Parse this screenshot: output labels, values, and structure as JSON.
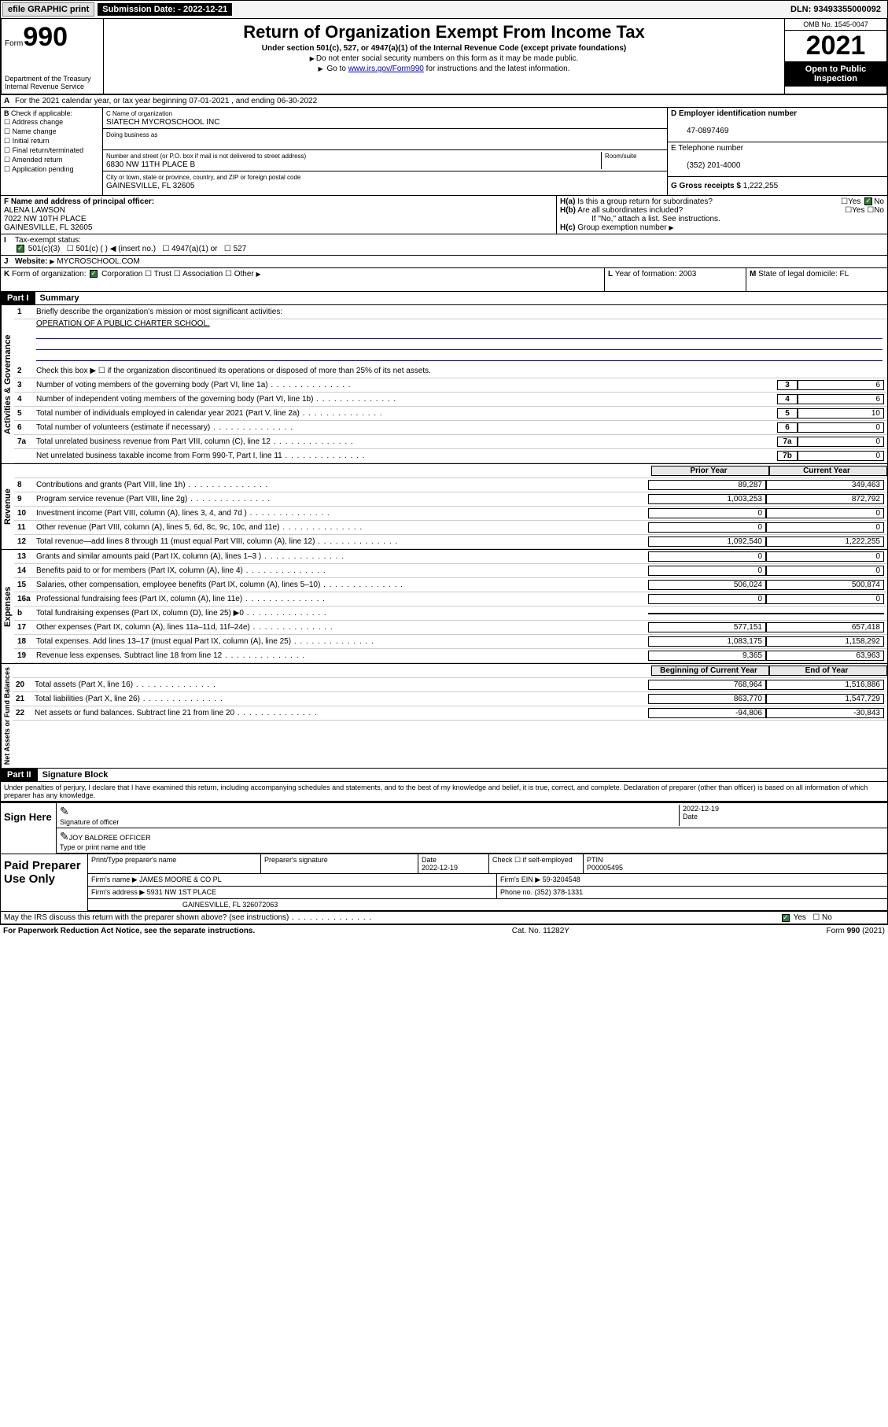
{
  "topbar": {
    "efile": "efile GRAPHIC print",
    "submission": "Submission Date: - 2022-12-21",
    "dln": "DLN: 93493355000092"
  },
  "header": {
    "form_prefix": "Form",
    "form_num": "990",
    "dept": "Department of the Treasury\nInternal Revenue Service",
    "title": "Return of Organization Exempt From Income Tax",
    "subtitle": "Under section 501(c), 527, or 4947(a)(1) of the Internal Revenue Code (except private foundations)",
    "note1": "Do not enter social security numbers on this form as it may be made public.",
    "note2_pre": "Go to ",
    "note2_link": "www.irs.gov/Form990",
    "note2_post": " for instructions and the latest information.",
    "omb": "OMB No. 1545-0047",
    "year": "2021",
    "open": "Open to Public Inspection"
  },
  "lineA": "For the 2021 calendar year, or tax year beginning 07-01-2021    , and ending 06-30-2022",
  "boxB": {
    "label": "Check if applicable:",
    "items": [
      "Address change",
      "Name change",
      "Initial return",
      "Final return/terminated",
      "Amended return",
      "Application pending"
    ]
  },
  "boxC": {
    "name_lbl": "C Name of organization",
    "name": "SIATECH MYCROSCHOOL INC",
    "dba_lbl": "Doing business as",
    "dba": "",
    "addr_lbl": "Number and street (or P.O. box if mail is not delivered to street address)",
    "addr": "6830 NW 11TH PLACE B",
    "room_lbl": "Room/suite",
    "city_lbl": "City or town, state or province, country, and ZIP or foreign postal code",
    "city": "GAINESVILLE, FL  32605"
  },
  "boxD": {
    "lbl": "D Employer identification number",
    "val": "47-0897469"
  },
  "boxE": {
    "lbl": "E Telephone number",
    "val": "(352) 201-4000"
  },
  "boxG": {
    "lbl": "G Gross receipts $",
    "val": "1,222,255"
  },
  "boxF": {
    "lbl": "F  Name and address of principal officer:",
    "name": "ALENA LAWSON",
    "addr": "7022 NW 10TH PLACE",
    "city": "GAINESVILLE, FL  32605"
  },
  "boxH": {
    "a": "Is this a group return for subordinates?",
    "b": "Are all subordinates included?",
    "b_note": "If \"No,\" attach a list. See instructions.",
    "c": "Group exemption number"
  },
  "boxI": {
    "lbl": "Tax-exempt status:",
    "opts": [
      "501(c)(3)",
      "501(c) (  ) ◀ (insert no.)",
      "4947(a)(1) or",
      "527"
    ]
  },
  "boxJ": {
    "lbl": "Website:",
    "val": "MYCROSCHOOL.COM"
  },
  "boxK": {
    "lbl": "Form of organization:",
    "opts": [
      "Corporation",
      "Trust",
      "Association",
      "Other"
    ]
  },
  "boxL": {
    "lbl": "Year of formation:",
    "val": "2003"
  },
  "boxM": {
    "lbl": "State of legal domicile:",
    "val": "FL"
  },
  "part1": {
    "hdr": "Part I",
    "title": "Summary",
    "l1": "Briefly describe the organization's mission or most significant activities:",
    "l1v": "OPERATION OF A PUBLIC CHARTER SCHOOL.",
    "l2": "Check this box ▶ ☐  if the organization discontinued its operations or disposed of more than 25% of its net assets.",
    "rows_gov": [
      {
        "n": "3",
        "t": "Number of voting members of the governing body (Part VI, line 1a)",
        "box": "3",
        "v": "6"
      },
      {
        "n": "4",
        "t": "Number of independent voting members of the governing body (Part VI, line 1b)",
        "box": "4",
        "v": "6"
      },
      {
        "n": "5",
        "t": "Total number of individuals employed in calendar year 2021 (Part V, line 2a)",
        "box": "5",
        "v": "10"
      },
      {
        "n": "6",
        "t": "Total number of volunteers (estimate if necessary)",
        "box": "6",
        "v": "0"
      },
      {
        "n": "7a",
        "t": "Total unrelated business revenue from Part VIII, column (C), line 12",
        "box": "7a",
        "v": "0"
      },
      {
        "n": "",
        "t": "Net unrelated business taxable income from Form 990-T, Part I, line 11",
        "box": "7b",
        "v": "0"
      }
    ],
    "col_prior": "Prior Year",
    "col_curr": "Current Year",
    "rows_rev": [
      {
        "n": "8",
        "t": "Contributions and grants (Part VIII, line 1h)",
        "p": "89,287",
        "c": "349,463"
      },
      {
        "n": "9",
        "t": "Program service revenue (Part VIII, line 2g)",
        "p": "1,003,253",
        "c": "872,792"
      },
      {
        "n": "10",
        "t": "Investment income (Part VIII, column (A), lines 3, 4, and 7d )",
        "p": "0",
        "c": "0"
      },
      {
        "n": "11",
        "t": "Other revenue (Part VIII, column (A), lines 5, 6d, 8c, 9c, 10c, and 11e)",
        "p": "0",
        "c": "0"
      },
      {
        "n": "12",
        "t": "Total revenue—add lines 8 through 11 (must equal Part VIII, column (A), line 12)",
        "p": "1,092,540",
        "c": "1,222,255"
      }
    ],
    "rows_exp": [
      {
        "n": "13",
        "t": "Grants and similar amounts paid (Part IX, column (A), lines 1–3 )",
        "p": "0",
        "c": "0"
      },
      {
        "n": "14",
        "t": "Benefits paid to or for members (Part IX, column (A), line 4)",
        "p": "0",
        "c": "0"
      },
      {
        "n": "15",
        "t": "Salaries, other compensation, employee benefits (Part IX, column (A), lines 5–10)",
        "p": "506,024",
        "c": "500,874"
      },
      {
        "n": "16a",
        "t": "Professional fundraising fees (Part IX, column (A), line 11e)",
        "p": "0",
        "c": "0"
      },
      {
        "n": "b",
        "t": "Total fundraising expenses (Part IX, column (D), line 25) ▶0",
        "p": "gray",
        "c": "gray"
      },
      {
        "n": "17",
        "t": "Other expenses (Part IX, column (A), lines 11a–11d, 11f–24e)",
        "p": "577,151",
        "c": "657,418"
      },
      {
        "n": "18",
        "t": "Total expenses. Add lines 13–17 (must equal Part IX, column (A), line 25)",
        "p": "1,083,175",
        "c": "1,158,292"
      },
      {
        "n": "19",
        "t": "Revenue less expenses. Subtract line 18 from line 12",
        "p": "9,365",
        "c": "63,963"
      }
    ],
    "col_beg": "Beginning of Current Year",
    "col_end": "End of Year",
    "rows_net": [
      {
        "n": "20",
        "t": "Total assets (Part X, line 16)",
        "p": "768,964",
        "c": "1,516,886"
      },
      {
        "n": "21",
        "t": "Total liabilities (Part X, line 26)",
        "p": "863,770",
        "c": "1,547,729"
      },
      {
        "n": "22",
        "t": "Net assets or fund balances. Subtract line 21 from line 20",
        "p": "-94,806",
        "c": "-30,843"
      }
    ],
    "vlabels": {
      "gov": "Activities & Governance",
      "rev": "Revenue",
      "exp": "Expenses",
      "net": "Net Assets or Fund Balances"
    }
  },
  "part2": {
    "hdr": "Part II",
    "title": "Signature Block",
    "decl": "Under penalties of perjury, I declare that I have examined this return, including accompanying schedules and statements, and to the best of my knowledge and belief, it is true, correct, and complete. Declaration of preparer (other than officer) is based on all information of which preparer has any knowledge.",
    "sign_here": "Sign Here",
    "sig_officer": "Signature of officer",
    "sig_date": "Date",
    "sig_date_v": "2022-12-19",
    "sig_name": "JOY BALDREE OFFICER",
    "sig_name_lbl": "Type or print name and title",
    "paid": "Paid Preparer Use Only",
    "p_name_lbl": "Print/Type preparer's name",
    "p_name": "",
    "p_sig_lbl": "Preparer's signature",
    "p_date_lbl": "Date",
    "p_date": "2022-12-19",
    "p_check": "Check ☐ if self-employed",
    "p_ptin_lbl": "PTIN",
    "p_ptin": "P00005495",
    "firm_lbl": "Firm's name    ▶",
    "firm": "JAMES MOORE & CO PL",
    "ein_lbl": "Firm's EIN ▶",
    "ein": "59-3204548",
    "firm_addr_lbl": "Firm's address ▶",
    "firm_addr": "5931 NW 1ST PLACE",
    "firm_city": "GAINESVILLE, FL  326072063",
    "phone_lbl": "Phone no.",
    "phone": "(352) 378-1331",
    "discuss": "May the IRS discuss this return with the preparer shown above? (see instructions)"
  },
  "footer": {
    "pra": "For Paperwork Reduction Act Notice, see the separate instructions.",
    "cat": "Cat. No. 11282Y",
    "form": "Form 990 (2021)"
  }
}
